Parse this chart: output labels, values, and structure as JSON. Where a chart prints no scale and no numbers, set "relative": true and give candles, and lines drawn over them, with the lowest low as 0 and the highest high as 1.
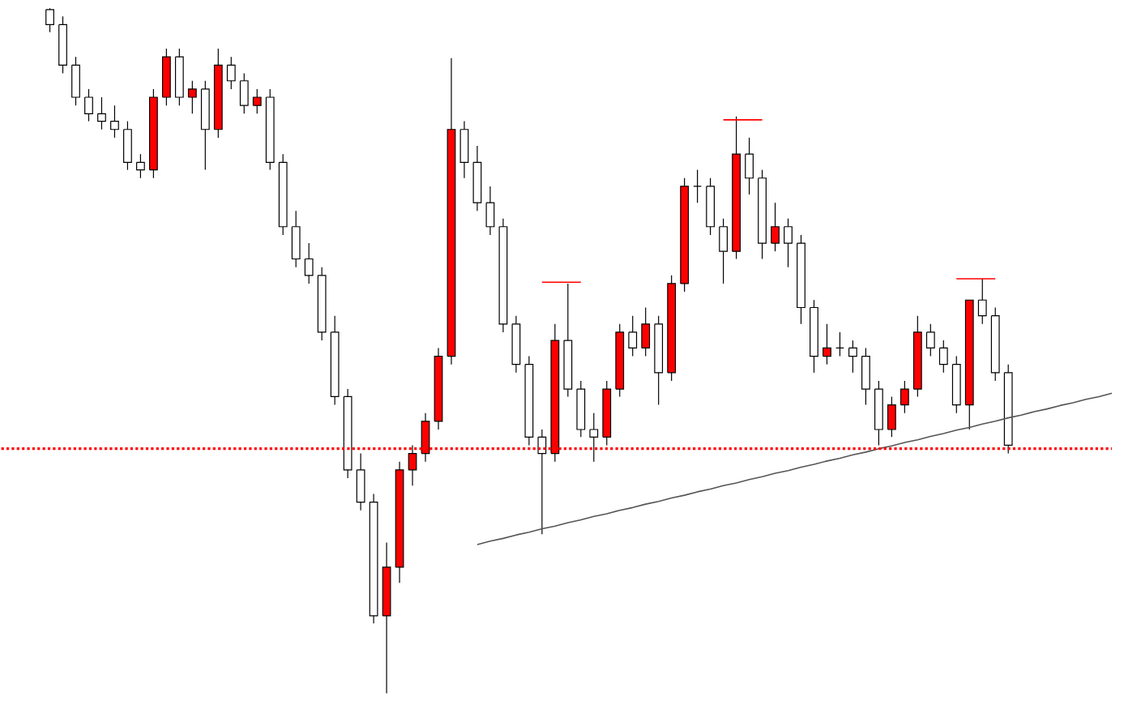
{
  "chart_data": {
    "type": "candlestick",
    "relative": true,
    "categories": [
      null,
      null,
      null,
      null,
      null,
      null,
      null,
      null,
      null,
      null,
      null,
      null,
      null,
      null,
      null,
      null,
      null,
      null,
      null,
      null,
      null,
      null,
      null,
      null,
      null,
      null,
      null,
      null,
      null,
      null,
      null,
      null,
      null,
      null,
      null,
      null,
      null,
      null,
      null,
      null,
      null,
      null,
      null,
      null,
      null,
      null,
      null,
      null,
      null,
      null,
      null,
      null,
      null,
      null,
      null,
      null,
      null,
      null,
      null,
      null,
      null,
      null,
      null,
      null,
      null,
      null,
      null,
      null,
      null,
      null,
      null,
      null,
      null,
      null,
      null,
      null,
      null,
      null,
      null,
      null,
      null,
      null,
      null
    ],
    "ohlc": [
      [
        0.998,
        1.0,
        0.965,
        0.976
      ],
      [
        0.976,
        0.988,
        0.905,
        0.917
      ],
      [
        0.917,
        0.929,
        0.858,
        0.87
      ],
      [
        0.87,
        0.882,
        0.835,
        0.846
      ],
      [
        0.846,
        0.87,
        0.823,
        0.835
      ],
      [
        0.835,
        0.858,
        0.811,
        0.823
      ],
      [
        0.823,
        0.835,
        0.764,
        0.775
      ],
      [
        0.775,
        0.787,
        0.752,
        0.764
      ],
      [
        0.764,
        0.882,
        0.752,
        0.87
      ],
      [
        0.87,
        0.941,
        0.858,
        0.929
      ],
      [
        0.929,
        0.941,
        0.858,
        0.87
      ],
      [
        0.87,
        0.894,
        0.846,
        0.882
      ],
      [
        0.882,
        0.894,
        0.764,
        0.823
      ],
      [
        0.823,
        0.941,
        0.811,
        0.917
      ],
      [
        0.917,
        0.929,
        0.882,
        0.894
      ],
      [
        0.894,
        0.905,
        0.846,
        0.858
      ],
      [
        0.858,
        0.882,
        0.846,
        0.87
      ],
      [
        0.87,
        0.882,
        0.764,
        0.775
      ],
      [
        0.775,
        0.787,
        0.669,
        0.681
      ],
      [
        0.681,
        0.704,
        0.622,
        0.634
      ],
      [
        0.634,
        0.657,
        0.598,
        0.61
      ],
      [
        0.61,
        0.622,
        0.515,
        0.527
      ],
      [
        0.527,
        0.551,
        0.421,
        0.433
      ],
      [
        0.433,
        0.444,
        0.314,
        0.326
      ],
      [
        0.326,
        0.35,
        0.267,
        0.279
      ],
      [
        0.279,
        0.291,
        0.102,
        0.113
      ],
      [
        0.113,
        0.22,
        0,
        0.184
      ],
      [
        0.184,
        0.338,
        0.161,
        0.326
      ],
      [
        0.326,
        0.362,
        0.303,
        0.35
      ],
      [
        0.35,
        0.409,
        0.338,
        0.397
      ],
      [
        0.397,
        0.504,
        0.385,
        0.492
      ],
      [
        0.492,
        0.927,
        0.48,
        0.823
      ],
      [
        0.823,
        0.835,
        0.752,
        0.775
      ],
      [
        0.775,
        0.799,
        0.704,
        0.716
      ],
      [
        0.716,
        0.74,
        0.669,
        0.681
      ],
      [
        0.681,
        0.693,
        0.527,
        0.539
      ],
      [
        0.539,
        0.551,
        0.468,
        0.48
      ],
      [
        0.48,
        0.492,
        0.362,
        0.374
      ],
      [
        0.374,
        0.385,
        0.232,
        0.35
      ],
      [
        0.35,
        0.539,
        0.338,
        0.515
      ],
      [
        0.515,
        0.598,
        0.433,
        0.444
      ],
      [
        0.444,
        0.456,
        0.374,
        0.385
      ],
      [
        0.385,
        0.409,
        0.338,
        0.374
      ],
      [
        0.374,
        0.456,
        0.362,
        0.444
      ],
      [
        0.444,
        0.539,
        0.433,
        0.527
      ],
      [
        0.527,
        0.551,
        0.492,
        0.504
      ],
      [
        0.504,
        0.563,
        0.492,
        0.539
      ],
      [
        0.539,
        0.551,
        0.421,
        0.468
      ],
      [
        0.468,
        0.61,
        0.456,
        0.598
      ],
      [
        0.598,
        0.752,
        0.586,
        0.74
      ],
      [
        0.74,
        0.764,
        0.716,
        0.74
      ],
      [
        0.74,
        0.752,
        0.669,
        0.681
      ],
      [
        0.681,
        0.693,
        0.598,
        0.645
      ],
      [
        0.645,
        0.842,
        0.634,
        0.787
      ],
      [
        0.787,
        0.811,
        0.728,
        0.752
      ],
      [
        0.752,
        0.764,
        0.634,
        0.657
      ],
      [
        0.657,
        0.716,
        0.645,
        0.681
      ],
      [
        0.681,
        0.693,
        0.622,
        0.657
      ],
      [
        0.657,
        0.669,
        0.539,
        0.563
      ],
      [
        0.563,
        0.574,
        0.468,
        0.492
      ],
      [
        0.492,
        0.539,
        0.48,
        0.504
      ],
      [
        0.504,
        0.527,
        0.492,
        0.504
      ],
      [
        0.504,
        0.515,
        0.468,
        0.492
      ],
      [
        0.492,
        0.504,
        0.421,
        0.444
      ],
      [
        0.444,
        0.456,
        0.362,
        0.385
      ],
      [
        0.385,
        0.433,
        0.374,
        0.421
      ],
      [
        0.421,
        0.456,
        0.409,
        0.444
      ],
      [
        0.444,
        0.551,
        0.433,
        0.527
      ],
      [
        0.527,
        0.539,
        0.492,
        0.504
      ],
      [
        0.504,
        0.515,
        0.468,
        0.48
      ],
      [
        0.48,
        0.492,
        0.409,
        0.421
      ],
      [
        0.421,
        0.574,
        0.385,
        0.574
      ],
      [
        0.574,
        0.605,
        0.539,
        0.551
      ],
      [
        0.551,
        0.563,
        0.456,
        0.468
      ],
      [
        0.468,
        0.48,
        0.35,
        0.362
      ],
      null,
      null,
      null,
      null,
      null,
      null,
      null,
      null
    ],
    "series": [
      {
        "type": "line",
        "color": "#555555",
        "values": [
          null,
          null,
          null,
          null,
          null,
          null,
          null,
          null,
          null,
          null,
          null,
          null,
          null,
          null,
          null,
          null,
          null,
          null,
          null,
          null,
          null,
          null,
          null,
          null,
          null,
          null,
          null,
          null,
          null,
          null,
          null,
          null,
          null,
          0.217,
          0.222,
          0.226,
          0.231,
          0.235,
          0.24,
          0.244,
          0.249,
          0.253,
          0.258,
          0.262,
          0.267,
          0.271,
          0.276,
          0.28,
          0.285,
          0.289,
          0.294,
          0.298,
          0.303,
          0.307,
          0.312,
          0.316,
          0.321,
          0.325,
          0.33,
          0.334,
          0.339,
          0.343,
          0.348,
          0.352,
          0.357,
          0.361,
          0.366,
          0.37,
          0.375,
          0.379,
          0.384,
          0.388,
          0.393,
          0.397,
          0.402,
          0.406,
          0.411,
          0.415,
          0.42,
          0.424,
          0.429,
          0.433,
          0.438
        ]
      },
      {
        "type": "line",
        "color": "#ff0000",
        "values": [
          null,
          null,
          null,
          null,
          null,
          null,
          null,
          null,
          null,
          null,
          null,
          null,
          null,
          null,
          null,
          null,
          null,
          null,
          null,
          null,
          null,
          null,
          null,
          null,
          null,
          null,
          null,
          null,
          null,
          null,
          null,
          null,
          null,
          null,
          null,
          null,
          null,
          null,
          0.6,
          0.6,
          0.6,
          0.6,
          null,
          null,
          null,
          null,
          null,
          null,
          null,
          null,
          null,
          null,
          0.837,
          0.837,
          0.837,
          0.837,
          null,
          null,
          null,
          null,
          null,
          null,
          null,
          null,
          null,
          null,
          null,
          null,
          null,
          null,
          0.605,
          0.605,
          0.605,
          0.605,
          null,
          null,
          null,
          null,
          null,
          null,
          null,
          null,
          null
        ]
      }
    ],
    "ref_lines": [
      {
        "axis": "y",
        "value": 0.357,
        "color": "#ff0000",
        "line_style": "dotted"
      }
    ]
  }
}
